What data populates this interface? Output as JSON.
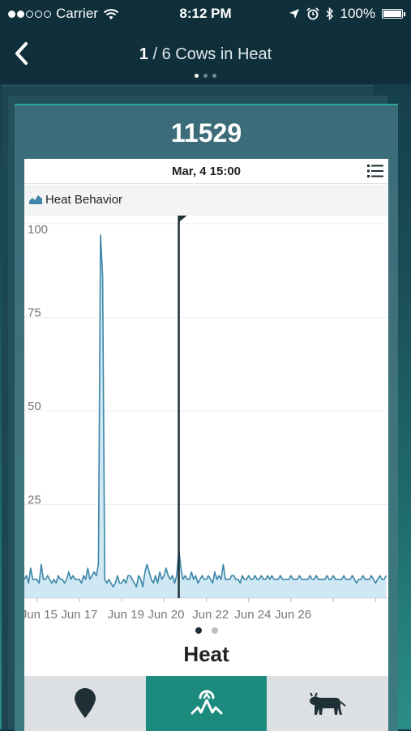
{
  "status_bar": {
    "carrier": "Carrier",
    "time": "8:12 PM",
    "battery": "100%",
    "battery_level": 1.0,
    "signal_bars_filled": 2,
    "signal_bars_total": 5
  },
  "nav": {
    "current": "1",
    "title_rest": "/ 6 Cows in Heat",
    "pager_count": 3,
    "pager_active": 0
  },
  "card": {
    "cow_id": "11529",
    "date": "Mar, 4  15:00",
    "legend_label": "Heat Behavior",
    "section_title": "Heat",
    "page_dots_count": 2,
    "page_dots_active": 0
  },
  "tabs": [
    {
      "icon": "location-pin-icon",
      "active": false
    },
    {
      "icon": "heat-activity-icon",
      "active": true
    },
    {
      "icon": "cow-icon",
      "active": false
    }
  ],
  "colors": {
    "accent": "#1d8a7e",
    "line": "#3d86a8",
    "fill": "#cfe8f3",
    "marker": "#1f2f36"
  },
  "chart_data": {
    "type": "area",
    "title": "",
    "ylabel": "",
    "xlabel": "",
    "ylim": [
      0,
      100
    ],
    "yticks": [
      0,
      25,
      50,
      75,
      100
    ],
    "xlim": [
      0,
      172
    ],
    "xtick_positions": [
      6,
      26,
      46,
      66,
      86,
      106,
      126,
      146,
      166
    ],
    "xtick_labels": [
      "Jun 15",
      "Jun 17",
      "Jun 19",
      "Jun 20",
      "Jun 22",
      "Jun 24",
      "Jun 26"
    ],
    "xtick_label_positions": [
      7,
      26,
      48,
      67,
      88,
      108,
      127
    ],
    "marker_x": 73,
    "grid": true,
    "series": [
      {
        "values": [
          5,
          6,
          4,
          8,
          5,
          5,
          5,
          4,
          9,
          5,
          5,
          6,
          5,
          4,
          5,
          4,
          6,
          5,
          5,
          4,
          5,
          7,
          5,
          6,
          5,
          5,
          5,
          4,
          6,
          5,
          8,
          5,
          6,
          7,
          6,
          9,
          97,
          86,
          5,
          4,
          5,
          4,
          3,
          4,
          6,
          4,
          4,
          5,
          4,
          6,
          6,
          5,
          4,
          3,
          6,
          5,
          3,
          7,
          9,
          7,
          5,
          4,
          6,
          4,
          7,
          5,
          6,
          8,
          6,
          5,
          6,
          4,
          6,
          13,
          8,
          5,
          6,
          5,
          5,
          7,
          5,
          6,
          4,
          5,
          6,
          5,
          5,
          6,
          5,
          4,
          7,
          5,
          6,
          5,
          9,
          5,
          5,
          5,
          6,
          6,
          5,
          5,
          4,
          6,
          5,
          5,
          6,
          5,
          5,
          6,
          5,
          5,
          6,
          5,
          5,
          6,
          5,
          6,
          5,
          5,
          5,
          6,
          5,
          5,
          5,
          5,
          6,
          5,
          5,
          5,
          6,
          5,
          5,
          5,
          5,
          6,
          5,
          5,
          6,
          5,
          5,
          5,
          5,
          6,
          5,
          5,
          6,
          5,
          5,
          5,
          5,
          6,
          5,
          5,
          5,
          6,
          5,
          4,
          5,
          5,
          6,
          5,
          5,
          5,
          6,
          5,
          4,
          5,
          6,
          5,
          5,
          6
        ]
      }
    ]
  }
}
